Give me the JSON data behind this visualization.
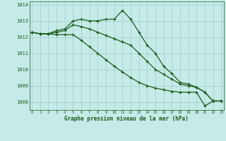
{
  "title": "Graphe pression niveau de la mer (hPa)",
  "background_color": "#c5ebe8",
  "grid_color": "#aad4d0",
  "line_color": "#1a5c1a",
  "hours": [
    0,
    1,
    2,
    3,
    4,
    5,
    6,
    7,
    8,
    9,
    10,
    11,
    12,
    13,
    14,
    15,
    16,
    17,
    18,
    19,
    20,
    21,
    22,
    23
  ],
  "line1": [
    1012.3,
    1012.2,
    1012.2,
    1012.4,
    1012.5,
    1013.0,
    1013.1,
    1013.0,
    1013.0,
    1013.1,
    1013.1,
    1013.65,
    1013.1,
    1012.3,
    1011.5,
    1011.0,
    1010.2,
    1009.75,
    1009.2,
    1009.1,
    1008.9,
    1008.6,
    1008.05,
    1008.05
  ],
  "line2": [
    1012.3,
    1012.2,
    1012.2,
    1012.15,
    1012.15,
    1012.15,
    1011.8,
    1011.4,
    1011.0,
    1010.6,
    1010.2,
    1009.85,
    1009.5,
    1009.2,
    1009.0,
    1008.85,
    1008.75,
    1008.65,
    1008.6,
    1008.6,
    1008.6,
    1007.75,
    1008.05,
    1008.05
  ],
  "line3": [
    1012.3,
    1012.2,
    1012.2,
    1012.3,
    1012.4,
    1012.75,
    1012.65,
    1012.5,
    1012.3,
    1012.1,
    1011.9,
    1011.7,
    1011.5,
    1011.0,
    1010.5,
    1010.0,
    1009.7,
    1009.4,
    1009.1,
    1009.0,
    1008.9,
    1008.6,
    1008.05,
    1008.05
  ],
  "ylim_min": 1007.5,
  "ylim_max": 1014.2,
  "yticks": [
    1008,
    1009,
    1010,
    1011,
    1012,
    1013,
    1014
  ],
  "xticks": [
    0,
    1,
    2,
    3,
    4,
    5,
    6,
    7,
    8,
    9,
    10,
    11,
    12,
    13,
    14,
    15,
    16,
    17,
    18,
    19,
    20,
    21,
    22,
    23
  ]
}
